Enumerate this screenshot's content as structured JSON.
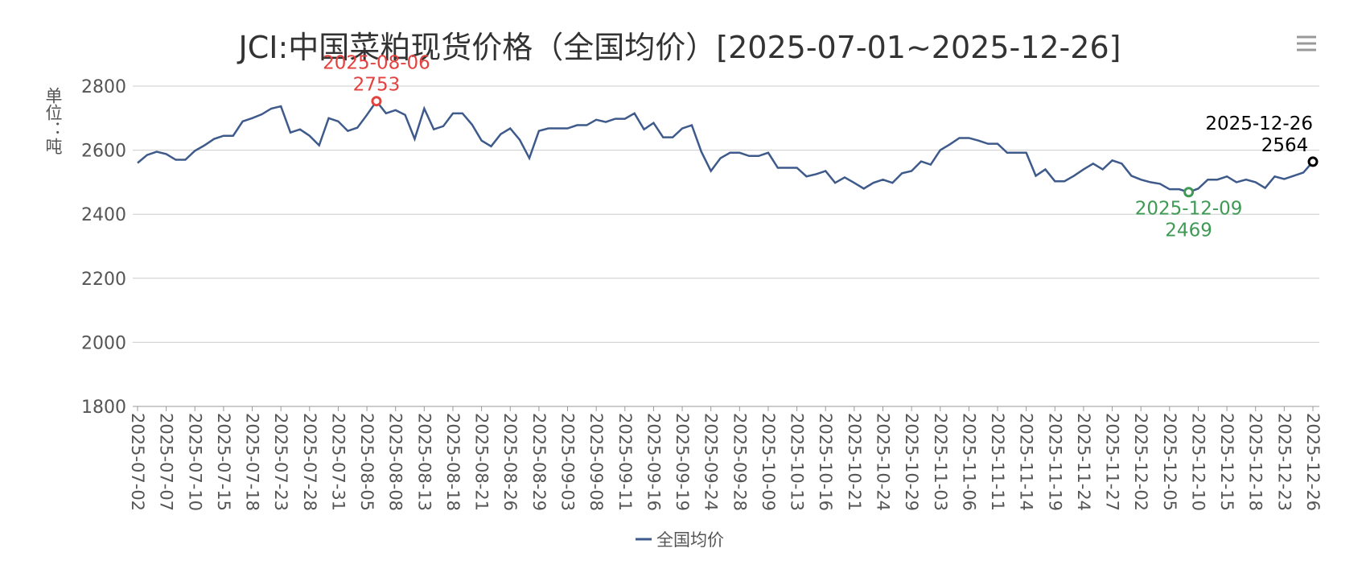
{
  "chart_data": {
    "type": "line",
    "title": "JCI:中国菜粕现货价格（全国均价）[2025-07-01~2025-12-26]",
    "y_label": "单位：吨",
    "categories": [
      "2025-07-02",
      null,
      null,
      "2025-07-07",
      null,
      null,
      "2025-07-10",
      null,
      null,
      "2025-07-15",
      null,
      null,
      "2025-07-18",
      null,
      null,
      "2025-07-23",
      null,
      null,
      "2025-07-28",
      null,
      null,
      "2025-07-31",
      null,
      null,
      "2025-08-05",
      null,
      null,
      "2025-08-08",
      null,
      null,
      "2025-08-13",
      null,
      null,
      "2025-08-18",
      null,
      null,
      "2025-08-21",
      null,
      null,
      "2025-08-26",
      null,
      null,
      "2025-08-29",
      null,
      null,
      "2025-09-03",
      null,
      null,
      "2025-09-08",
      null,
      null,
      "2025-09-11",
      null,
      null,
      "2025-09-16",
      null,
      null,
      "2025-09-19",
      null,
      null,
      "2025-09-24",
      null,
      null,
      "2025-09-28",
      null,
      null,
      "2025-10-09",
      null,
      null,
      "2025-10-13",
      null,
      null,
      "2025-10-16",
      null,
      null,
      "2025-10-21",
      null,
      null,
      "2025-10-24",
      null,
      null,
      "2025-10-29",
      null,
      null,
      "2025-11-03",
      null,
      null,
      "2025-11-06",
      null,
      null,
      "2025-11-11",
      null,
      null,
      "2025-11-14",
      null,
      null,
      "2025-11-19",
      null,
      null,
      "2025-11-24",
      null,
      null,
      "2025-11-27",
      null,
      null,
      "2025-12-02",
      null,
      null,
      "2025-12-05",
      null,
      null,
      "2025-12-10",
      null,
      null,
      "2025-12-15",
      null,
      null,
      "2025-12-18",
      null,
      null,
      "2025-12-23",
      null,
      null,
      "2025-12-26"
    ],
    "series": [
      {
        "name": "全国均价",
        "color": "#3e5a8b",
        "values": [
          2560,
          2585,
          2595,
          2588,
          2570,
          2570,
          2598,
          2615,
          2635,
          2645,
          2645,
          2690,
          2700,
          2712,
          2730,
          2737,
          2655,
          2665,
          2645,
          2615,
          2700,
          2690,
          2660,
          2670,
          2710,
          2753,
          2715,
          2725,
          2710,
          2635,
          2730,
          2665,
          2675,
          2715,
          2715,
          2680,
          2630,
          2612,
          2650,
          2668,
          2632,
          2575,
          2660,
          2668,
          2668,
          2668,
          2678,
          2678,
          2695,
          2688,
          2698,
          2698,
          2715,
          2665,
          2685,
          2640,
          2640,
          2668,
          2678,
          2595,
          2535,
          2575,
          2592,
          2592,
          2582,
          2582,
          2592,
          2545,
          2545,
          2545,
          2518,
          2525,
          2535,
          2498,
          2515,
          2498,
          2480,
          2498,
          2508,
          2498,
          2528,
          2535,
          2565,
          2555,
          2600,
          2618,
          2638,
          2638,
          2630,
          2620,
          2620,
          2592,
          2592,
          2592,
          2520,
          2540,
          2503,
          2503,
          2520,
          2540,
          2558,
          2540,
          2568,
          2558,
          2520,
          2508,
          2500,
          2495,
          2478,
          2478,
          2469,
          2480,
          2508,
          2508,
          2518,
          2500,
          2508,
          2500,
          2482,
          2518,
          2510,
          2520,
          2530,
          2564
        ]
      }
    ],
    "annotations": [
      {
        "label": "2025-08-06",
        "value": 2753,
        "color": "#e5413e"
      },
      {
        "label": "2025-12-09",
        "value": 2469,
        "color": "#3f9a55"
      },
      {
        "label": "2025-12-26",
        "value": 2564,
        "color": "#000000"
      }
    ],
    "ylim": [
      1800,
      2800
    ],
    "yticks": [
      1800,
      2000,
      2200,
      2400,
      2600,
      2800
    ],
    "grid": true
  }
}
